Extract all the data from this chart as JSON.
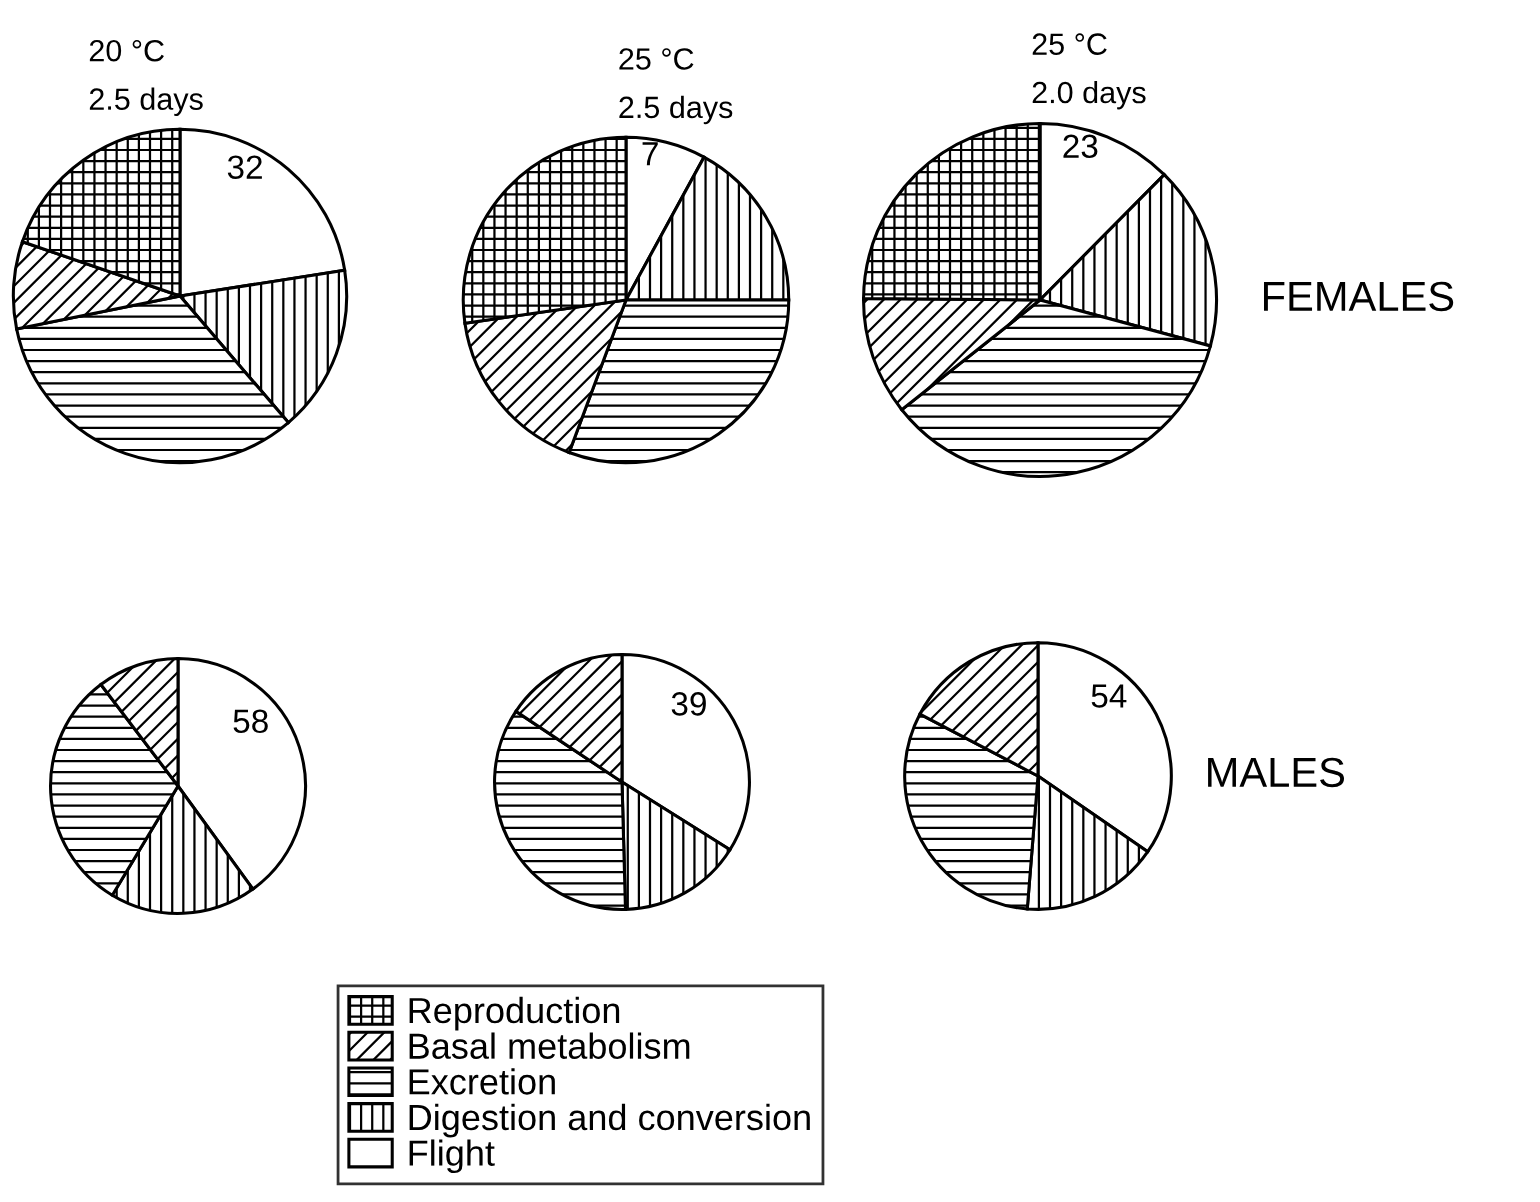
{
  "chart_data": [
    {
      "type": "pie",
      "title": "20 °C\n2.5 days",
      "categories": [
        "Flight",
        "Digestion and conversion",
        "Excretion",
        "Basal metabolism",
        "Reproduction"
      ],
      "values": [
        32,
        23,
        47,
        12,
        28
      ],
      "value_labels": [
        "32",
        null,
        null,
        null,
        null
      ],
      "legend": "bottom"
    },
    {
      "type": "pie",
      "title": "25 °C\n2.5 days",
      "categories": [
        null,
        null,
        null,
        null,
        null
      ],
      "values": [
        7,
        15,
        27,
        15,
        24
      ],
      "value_labels": [
        "7",
        null,
        null,
        null,
        null
      ]
    },
    {
      "type": "pie",
      "title": "25 °C\n2.0 days",
      "categories": [
        null,
        null,
        null,
        null,
        null
      ],
      "values": [
        23,
        31,
        65,
        20,
        46
      ],
      "value_labels": [
        "23",
        null,
        null,
        null,
        null
      ],
      "annotations": [
        "FEMALES"
      ]
    },
    {
      "type": "pie",
      "categories": [
        null,
        null,
        null,
        null
      ],
      "values": [
        58,
        27,
        45,
        15
      ],
      "value_labels": [
        "58",
        null,
        null,
        null
      ]
    },
    {
      "type": "pie",
      "categories": [
        null,
        null,
        null,
        null
      ],
      "values": [
        39,
        18,
        40,
        18
      ],
      "value_labels": [
        "39",
        null,
        null,
        null
      ]
    },
    {
      "type": "pie",
      "categories": [
        null,
        null,
        null,
        null
      ],
      "values": [
        54,
        26,
        49,
        27
      ],
      "value_labels": [
        "54",
        null,
        null,
        null
      ],
      "annotations": [
        "MALES"
      ]
    }
  ]
}
